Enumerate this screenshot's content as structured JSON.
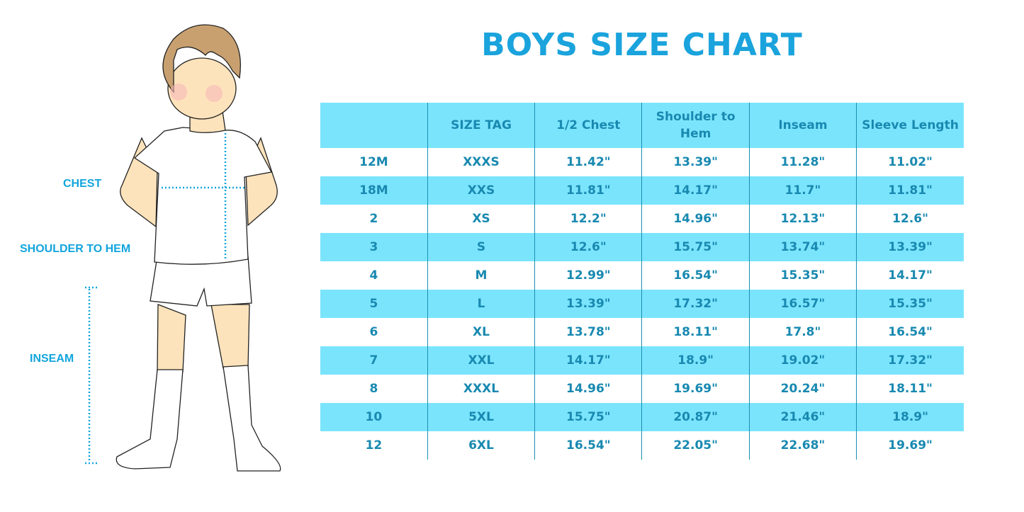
{
  "title": "BOYS SIZE CHART",
  "illustration": {
    "labels": {
      "chest": "CHEST",
      "shoulder_to_hem": "SHOULDER TO HEM",
      "inseam": "INSEAM"
    }
  },
  "colors": {
    "title": "#1aa3dc",
    "stripe": "#7be4fd",
    "text": "#1889b0",
    "measure_lines": "#12a5dd"
  },
  "chart_data": {
    "type": "table",
    "columns": [
      "",
      "SIZE TAG",
      "1/2 Chest",
      "Shoulder to Hem",
      "Inseam",
      "Sleeve Length"
    ],
    "rows": [
      [
        "12M",
        "XXXS",
        "11.42\"",
        "13.39\"",
        "11.28\"",
        "11.02\""
      ],
      [
        "18M",
        "XXS",
        "11.81\"",
        "14.17\"",
        "11.7\"",
        "11.81\""
      ],
      [
        "2",
        "XS",
        "12.2\"",
        "14.96\"",
        "12.13\"",
        "12.6\""
      ],
      [
        "3",
        "S",
        "12.6\"",
        "15.75\"",
        "13.74\"",
        "13.39\""
      ],
      [
        "4",
        "M",
        "12.99\"",
        "16.54\"",
        "15.35\"",
        "14.17\""
      ],
      [
        "5",
        "L",
        "13.39\"",
        "17.32\"",
        "16.57\"",
        "15.35\""
      ],
      [
        "6",
        "XL",
        "13.78\"",
        "18.11\"",
        "17.8\"",
        "16.54\""
      ],
      [
        "7",
        "XXL",
        "14.17\"",
        "18.9\"",
        "19.02\"",
        "17.32\""
      ],
      [
        "8",
        "XXXL",
        "14.96\"",
        "19.69\"",
        "20.24\"",
        "18.11\""
      ],
      [
        "10",
        "5XL",
        "15.75\"",
        "20.87\"",
        "21.46\"",
        "18.9\""
      ],
      [
        "12",
        "6XL",
        "16.54\"",
        "22.05\"",
        "22.68\"",
        "19.69\""
      ]
    ]
  }
}
